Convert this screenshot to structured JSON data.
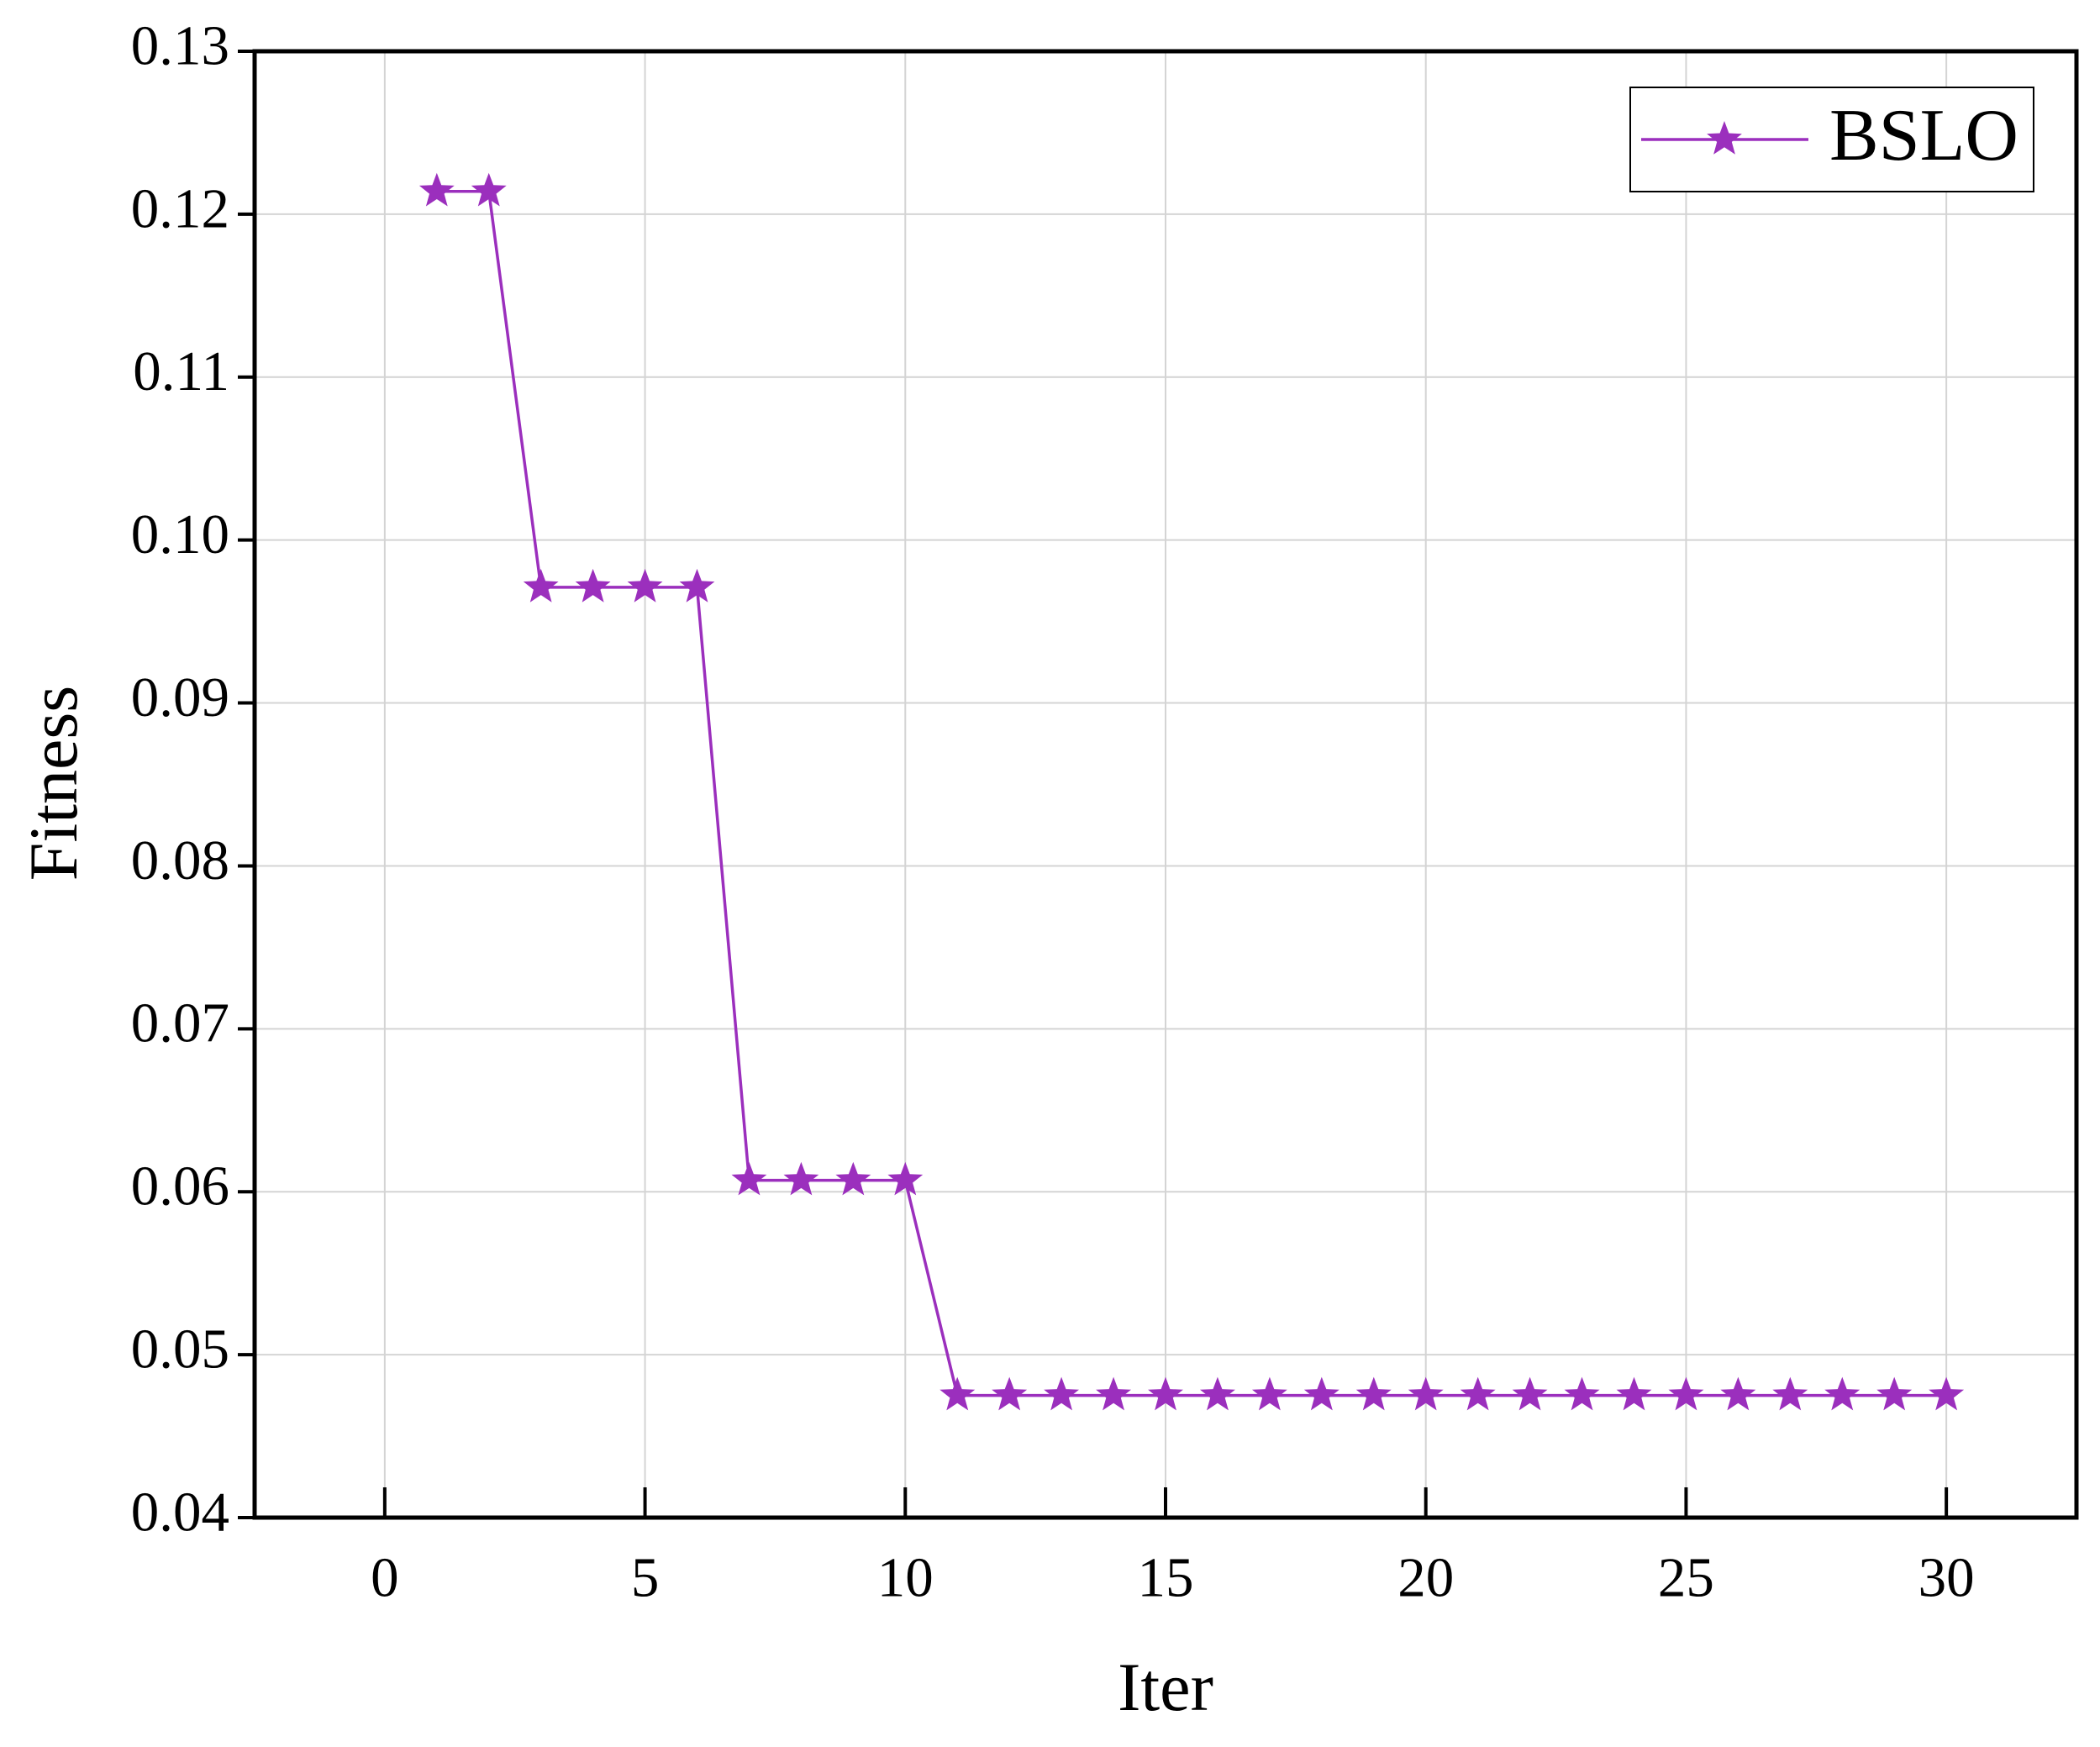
{
  "chart_data": {
    "type": "line",
    "x_label": "Iter",
    "y_label": "Fitness",
    "x": [
      1,
      2,
      3,
      4,
      5,
      6,
      7,
      8,
      9,
      10,
      11,
      12,
      13,
      14,
      15,
      16,
      17,
      18,
      19,
      20,
      21,
      22,
      23,
      24,
      25,
      26,
      27,
      28,
      29,
      30
    ],
    "series": [
      {
        "name": "BSLO",
        "color": "#9b2fbd",
        "marker": "star",
        "values": [
          0.1214,
          0.1214,
          0.0971,
          0.0971,
          0.0971,
          0.0971,
          0.0607,
          0.0607,
          0.0607,
          0.0607,
          0.0475,
          0.0475,
          0.0475,
          0.0475,
          0.0475,
          0.0475,
          0.0475,
          0.0475,
          0.0475,
          0.0475,
          0.0475,
          0.0475,
          0.0475,
          0.0475,
          0.0475,
          0.0475,
          0.0475,
          0.0475,
          0.0475,
          0.0475
        ]
      }
    ],
    "xlim": [
      -2.5,
      32.5
    ],
    "xticks": [
      0,
      5,
      10,
      15,
      20,
      25,
      30
    ],
    "ylim": [
      0.04,
      0.13
    ],
    "yticks": [
      0.04,
      0.05,
      0.06,
      0.07,
      0.08,
      0.09,
      {
        "value": 0.1,
        "label": "0.10"
      },
      0.11,
      0.12,
      0.13
    ],
    "grid": true,
    "legend": "upper right"
  }
}
